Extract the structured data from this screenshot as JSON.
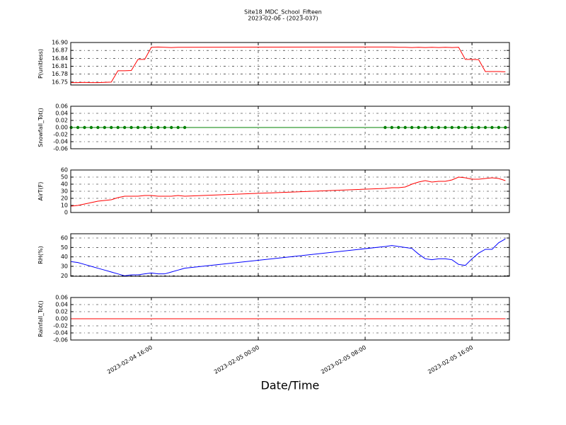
{
  "chart_data": {
    "type": "line",
    "title": "Site18_MDC_School_Fifteen",
    "subtitle": "2023-02-06 - (2023-037)",
    "xlabel": "Date/Time",
    "grid": true,
    "x": [
      "2023-02-04 10:00",
      "2023-02-04 10:30",
      "2023-02-04 11:00",
      "2023-02-04 11:30",
      "2023-02-04 12:00",
      "2023-02-04 12:30",
      "2023-02-04 13:00",
      "2023-02-04 13:30",
      "2023-02-04 14:00",
      "2023-02-04 14:30",
      "2023-02-04 15:00",
      "2023-02-04 15:30",
      "2023-02-04 16:00",
      "2023-02-04 16:30",
      "2023-02-04 17:00",
      "2023-02-04 17:30",
      "2023-02-04 18:00",
      "2023-02-04 18:30",
      "2023-02-05 09:30",
      "2023-02-05 10:00",
      "2023-02-05 10:30",
      "2023-02-05 11:00",
      "2023-02-05 11:30",
      "2023-02-05 12:00",
      "2023-02-05 12:30",
      "2023-02-05 13:00",
      "2023-02-05 13:30",
      "2023-02-05 14:00",
      "2023-02-05 14:30",
      "2023-02-05 15:00",
      "2023-02-05 15:30",
      "2023-02-05 16:00",
      "2023-02-05 16:30",
      "2023-02-05 17:00",
      "2023-02-05 17:30",
      "2023-02-05 18:00",
      "2023-02-05 18:30"
    ],
    "xlim": [
      "2023-02-04 09:58",
      "2023-02-05 18:48"
    ],
    "xticks": [
      "2023-02-04 16:00",
      "2023-02-05 00:00",
      "2023-02-05 08:00",
      "2023-02-05 16:00"
    ],
    "panels": [
      {
        "ylabel": "P(unitless)",
        "ylim": [
          16.739,
          16.9
        ],
        "yticks": [
          16.75,
          16.78,
          16.81,
          16.84,
          16.87,
          {
            "value": 16.9,
            "label": "16.90"
          }
        ],
        "series": [
          {
            "color": "#ff0000",
            "markers": false,
            "values": [
              16.748,
              16.748,
              16.749,
              16.748,
              16.748,
              16.749,
              16.75,
              16.793,
              16.793,
              16.794,
              16.836,
              16.836,
              16.882,
              16.883,
              16.882,
              16.881,
              16.882,
              16.882,
              16.883,
              16.883,
              16.882,
              16.882,
              16.881,
              16.882,
              16.881,
              16.882,
              16.881,
              16.882,
              16.881,
              16.882,
              16.836,
              16.836,
              16.835,
              16.79,
              16.79,
              16.79,
              16.789
            ]
          }
        ]
      },
      {
        "ylabel": "Snowfall_Tot()",
        "ylim": [
          -0.06,
          0.06
        ],
        "yticks": [
          -0.06,
          -0.04,
          -0.02,
          {
            "value": 0,
            "label": "0.00"
          },
          0.02,
          0.04,
          0.06
        ],
        "series": [
          {
            "color": "#008000",
            "markers": true,
            "values": [
              0,
              0,
              0,
              0,
              0,
              0,
              0,
              0,
              0,
              0,
              0,
              0,
              0,
              0,
              0,
              0,
              0,
              0,
              0,
              0,
              0,
              0,
              0,
              0,
              0,
              0,
              0,
              0,
              0,
              0,
              0,
              0,
              0,
              0,
              0,
              0,
              0
            ]
          }
        ]
      },
      {
        "ylabel": "AirT(F)",
        "ylim": [
          0,
          60
        ],
        "yticks": [
          0,
          10,
          20,
          30,
          40,
          50,
          60
        ],
        "series": [
          {
            "color": "#ff0000",
            "markers": false,
            "values": [
              9,
              10,
              12,
              14,
              16,
              17,
              18,
              21,
              23,
              23,
              23,
              24,
              24,
              23,
              23,
              23,
              24,
              23,
              34,
              35,
              35,
              36,
              40,
              43,
              45,
              43,
              44,
              44,
              46,
              50,
              49,
              47,
              47,
              48,
              49,
              48,
              45
            ]
          }
        ]
      },
      {
        "ylabel": "RH(%)",
        "ylim": [
          19.5,
          64.5
        ],
        "yticks": [
          20,
          30,
          40,
          50,
          60
        ],
        "series": [
          {
            "color": "#0000ff",
            "markers": false,
            "values": [
              35,
              34,
              32,
              30,
              28,
              26,
              24,
              22,
              20,
              21,
              21,
              22,
              23,
              22,
              22,
              24,
              26,
              28,
              51,
              52,
              51,
              50,
              49,
              43,
              38,
              37,
              38,
              38,
              37,
              32,
              31,
              38,
              44,
              48,
              48,
              55,
              59
            ]
          }
        ]
      },
      {
        "ylabel": "Rainfall_Tot()",
        "ylim": [
          -0.06,
          0.06
        ],
        "yticks": [
          -0.06,
          -0.04,
          -0.02,
          {
            "value": 0,
            "label": "0.00"
          },
          0.02,
          0.04,
          0.06
        ],
        "series": [
          {
            "color": "#ff0000",
            "markers": false,
            "values": [
              0,
              0,
              0,
              0,
              0,
              0,
              0,
              0,
              0,
              0,
              0,
              0,
              0,
              0,
              0,
              0,
              0,
              0,
              0,
              0,
              0,
              0,
              0,
              0,
              0,
              0,
              0,
              0,
              0,
              0,
              0,
              0,
              0,
              0,
              0,
              0,
              0
            ]
          }
        ]
      }
    ]
  }
}
